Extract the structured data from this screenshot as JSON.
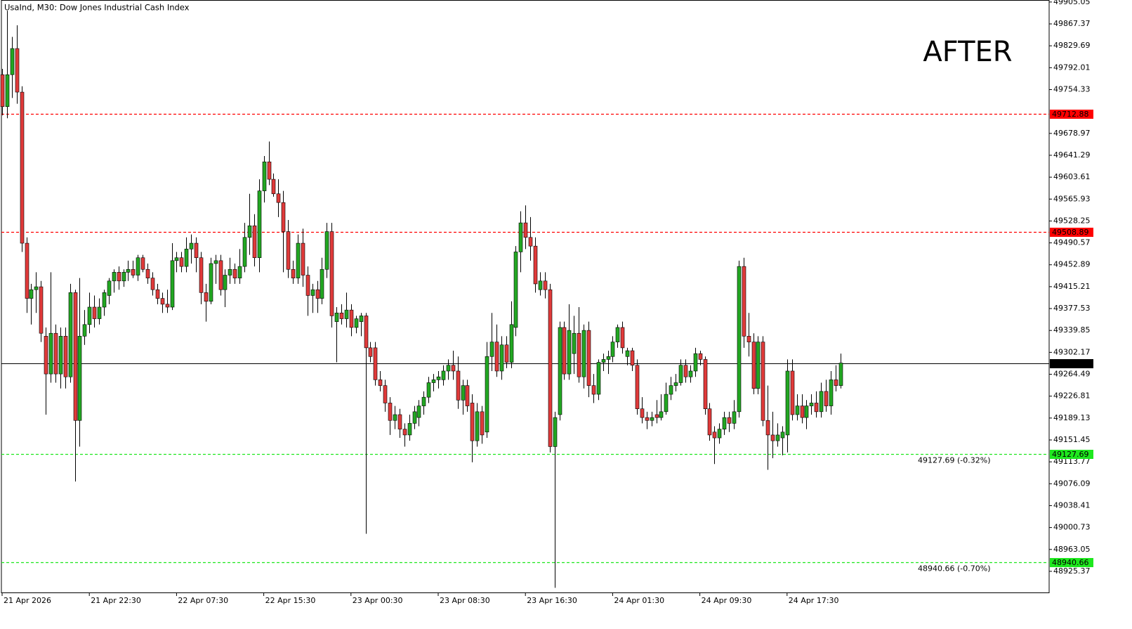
{
  "chart_data": {
    "type": "candlestick",
    "title": "UsaInd, M30:  Dow Jones Industrial Cash Index",
    "annotation": "AFTER",
    "up_color": "#22a722",
    "down_color": "#e03a3a",
    "ylim": [
      48889,
      49908.5
    ],
    "yticks": [
      49905.05,
      49867.37,
      49829.69,
      49792.01,
      49754.33,
      49678.97,
      49641.29,
      49603.61,
      49565.93,
      49528.25,
      49490.57,
      49452.89,
      49415.21,
      49377.53,
      49339.85,
      49302.17,
      49264.49,
      49226.81,
      49189.13,
      49151.45,
      49113.77,
      49076.09,
      49038.41,
      49000.73,
      48963.05,
      48925.37
    ],
    "levels": [
      {
        "value": 49712.88,
        "color": "#ff0000"
      },
      {
        "value": 49508.89,
        "color": "#ff0000"
      },
      {
        "value": 49127.69,
        "color": "#1ee81e",
        "text": "49127.69 (-0.32%)"
      },
      {
        "value": 48940.66,
        "color": "#1ee81e",
        "text": "48940.66 (-0.70%)"
      }
    ],
    "current_price": {
      "value": 49283.85,
      "color": "#000000"
    },
    "categories": [
      "21 Apr 2026",
      null,
      null,
      null,
      null,
      null,
      null,
      null,
      null,
      null,
      null,
      null,
      null,
      null,
      null,
      null,
      null,
      null,
      "21 Apr 22:30",
      null,
      null,
      null,
      null,
      null,
      null,
      null,
      null,
      null,
      null,
      null,
      null,
      null,
      null,
      null,
      null,
      null,
      "22 Apr 07:30",
      null,
      null,
      null,
      null,
      null,
      null,
      null,
      null,
      null,
      null,
      null,
      null,
      null,
      null,
      null,
      null,
      null,
      "22 Apr 15:30",
      null,
      null,
      null,
      null,
      null,
      null,
      null,
      null,
      null,
      null,
      null,
      null,
      null,
      null,
      null,
      null,
      null,
      "23 Apr 00:30",
      null,
      null,
      null,
      null,
      null,
      null,
      null,
      null,
      null,
      null,
      null,
      null,
      null,
      null,
      null,
      null,
      null,
      "23 Apr 08:30",
      null,
      null,
      null,
      null,
      null,
      null,
      null,
      null,
      null,
      null,
      null,
      null,
      null,
      null,
      null,
      null,
      null,
      "23 Apr 16:30",
      null,
      null,
      null,
      null,
      null,
      null,
      null,
      null,
      null,
      null,
      null,
      null,
      null,
      null,
      null,
      null,
      null,
      "24 Apr 01:30",
      null,
      null,
      null,
      null,
      null,
      null,
      null,
      null,
      null,
      null,
      null,
      null,
      null,
      null,
      null,
      null,
      null,
      "24 Apr 09:30",
      null,
      null,
      null,
      null,
      null,
      null,
      null,
      null,
      null,
      null,
      null,
      null,
      null,
      null,
      null,
      null,
      null,
      "24 Apr 17:30",
      null,
      null,
      null,
      null,
      null,
      null,
      null,
      null,
      null,
      null,
      null
    ],
    "open": [
      49780,
      49725,
      49780,
      49825,
      49750,
      49490,
      49395,
      49410,
      49415,
      49330,
      49265,
      49335,
      49265,
      49330,
      49260,
      49405,
      49185,
      49330,
      49350,
      49380,
      49360,
      49380,
      49400,
      49425,
      49440,
      49425,
      49440,
      49445,
      49435,
      49465,
      49445,
      49430,
      49410,
      49395,
      49385,
      49380,
      49460,
      49465,
      49450,
      49480,
      49490,
      49465,
      49405,
      49390,
      49455,
      49460,
      49410,
      49435,
      49445,
      49430,
      49450,
      49500,
      49520,
      49465,
      49580,
      49630,
      49600,
      49575,
      49560,
      49510,
      49445,
      49430,
      49490,
      49435,
      49400,
      49410,
      49395,
      49445,
      49510,
      49355,
      49370,
      49360,
      49375,
      49345,
      49355,
      49365,
      49310,
      49310,
      49255,
      49245,
      49215,
      49185,
      49195,
      49170,
      49160,
      49180,
      49190,
      49210,
      49225,
      49250,
      49255,
      49255,
      49270,
      49280,
      49270,
      49220,
      49245,
      49215,
      49150,
      49200,
      49165,
      49295,
      49320,
      49270,
      49315,
      49285,
      49345,
      49475,
      49525,
      49500,
      49485,
      49410,
      49425,
      49410,
      49140,
      49195,
      49345,
      49265,
      49300,
      49335,
      49260,
      49340,
      49245,
      49230,
      49285,
      49290,
      49295,
      49320,
      49345,
      49295,
      49305,
      49280,
      49205,
      49190,
      49185,
      49195,
      49190,
      49200,
      49230,
      49245,
      49250,
      49280,
      49260,
      49270,
      49300,
      49290,
      49205,
      49165,
      49155,
      49170,
      49190,
      49180,
      49200,
      49450,
      49330,
      49320,
      49240,
      49320,
      49185,
      49160,
      49150,
      49155,
      49160,
      49270,
      49195,
      49210,
      49190,
      49210,
      49215,
      49200,
      49235,
      49210,
      49255,
      49245
    ],
    "high": [
      49790,
      49890,
      49845,
      49865,
      49760,
      49500,
      49420,
      49440,
      49425,
      49345,
      49440,
      49350,
      49345,
      49345,
      49420,
      49410,
      49430,
      49375,
      49405,
      49400,
      49395,
      49410,
      49430,
      49445,
      49450,
      49445,
      49460,
      49460,
      49470,
      49470,
      49455,
      49440,
      49420,
      49405,
      49410,
      49490,
      49475,
      49475,
      49500,
      49505,
      49500,
      49475,
      49420,
      49465,
      49470,
      49470,
      49445,
      49465,
      49455,
      49480,
      49525,
      49575,
      49540,
      49600,
      49640,
      49665,
      49610,
      49600,
      49580,
      49530,
      49460,
      49505,
      49515,
      49450,
      49420,
      49425,
      49465,
      49525,
      49525,
      49380,
      49385,
      49405,
      49385,
      49365,
      49370,
      49370,
      49320,
      49320,
      49270,
      49255,
      49225,
      49210,
      49205,
      49180,
      49195,
      49210,
      49220,
      49235,
      49260,
      49265,
      49270,
      49280,
      49290,
      49305,
      49295,
      49255,
      49255,
      49230,
      49215,
      49210,
      49320,
      49370,
      49350,
      49330,
      49330,
      49390,
      49485,
      49545,
      49555,
      49535,
      49500,
      49440,
      49440,
      49420,
      49200,
      49355,
      49355,
      49385,
      49365,
      49380,
      49350,
      49355,
      49265,
      49290,
      49300,
      49305,
      49330,
      49350,
      49355,
      49310,
      49310,
      49290,
      49225,
      49200,
      49200,
      49220,
      49230,
      49250,
      49260,
      49265,
      49290,
      49290,
      49280,
      49310,
      49305,
      49295,
      49215,
      49175,
      49180,
      49200,
      49200,
      49220,
      49460,
      49465,
      49370,
      49335,
      49330,
      49330,
      49245,
      49200,
      49180,
      49175,
      49290,
      49290,
      49230,
      49230,
      49220,
      49230,
      49235,
      49250,
      49255,
      49270,
      49280,
      49300
    ],
    "low": [
      49710,
      49705,
      49740,
      49730,
      49475,
      49370,
      49350,
      49370,
      49320,
      49195,
      49250,
      49250,
      49240,
      49240,
      49250,
      49080,
      49140,
      49315,
      49335,
      49345,
      49350,
      49365,
      49385,
      49405,
      49410,
      49415,
      49425,
      49430,
      49425,
      49440,
      49420,
      49400,
      49385,
      49370,
      49370,
      49375,
      49440,
      49440,
      49440,
      49455,
      49440,
      49385,
      49355,
      49385,
      49420,
      49400,
      49380,
      49420,
      49420,
      49420,
      49440,
      49470,
      49450,
      49440,
      49560,
      49590,
      49570,
      49535,
      49440,
      49430,
      49420,
      49420,
      49415,
      49365,
      49370,
      49370,
      49385,
      49430,
      49345,
      49285,
      49350,
      49345,
      49330,
      49335,
      49330,
      48990,
      49285,
      49245,
      49235,
      49200,
      49160,
      49170,
      49155,
      49140,
      49150,
      49170,
      49175,
      49195,
      49215,
      49235,
      49240,
      49245,
      49255,
      49255,
      49205,
      49195,
      49200,
      49113,
      49140,
      49145,
      49155,
      49270,
      49260,
      49255,
      49275,
      49275,
      49330,
      49440,
      49480,
      49460,
      49405,
      49400,
      49395,
      49130,
      48897,
      49185,
      49255,
      49255,
      49265,
      49250,
      49240,
      49225,
      49215,
      49220,
      49270,
      49265,
      49285,
      49310,
      49300,
      49280,
      49270,
      49195,
      49180,
      49170,
      49175,
      49180,
      49185,
      49195,
      49220,
      49235,
      49245,
      49250,
      49250,
      49260,
      49280,
      49195,
      49150,
      49110,
      49145,
      49160,
      49165,
      49170,
      49190,
      49310,
      49295,
      49230,
      49230,
      49175,
      49100,
      49120,
      49140,
      49125,
      49130,
      49185,
      49185,
      49180,
      49170,
      49195,
      49190,
      49190,
      49200,
      49195,
      49235,
      49240
    ],
    "close": [
      49725,
      49780,
      49825,
      49750,
      49490,
      49395,
      49410,
      49415,
      49335,
      49265,
      49335,
      49265,
      49330,
      49260,
      49405,
      49185,
      49330,
      49350,
      49380,
      49360,
      49380,
      49405,
      49425,
      49440,
      49425,
      49440,
      49445,
      49435,
      49465,
      49445,
      49430,
      49410,
      49395,
      49385,
      49380,
      49460,
      49465,
      49450,
      49480,
      49490,
      49465,
      49405,
      49390,
      49455,
      49460,
      49410,
      49435,
      49445,
      49430,
      49450,
      49500,
      49520,
      49465,
      49580,
      49630,
      49600,
      49575,
      49560,
      49510,
      49445,
      49430,
      49490,
      49435,
      49400,
      49410,
      49395,
      49445,
      49510,
      49365,
      49370,
      49360,
      49375,
      49345,
      49360,
      49365,
      49310,
      49295,
      49255,
      49245,
      49215,
      49185,
      49195,
      49170,
      49160,
      49180,
      49200,
      49210,
      49225,
      49250,
      49255,
      49260,
      49270,
      49280,
      49270,
      49220,
      49245,
      49210,
      49150,
      49200,
      49160,
      49295,
      49320,
      49270,
      49315,
      49285,
      49350,
      49475,
      49525,
      49500,
      49485,
      49420,
      49425,
      49410,
      49140,
      49190,
      49345,
      49265,
      49340,
      49335,
      49260,
      49340,
      49245,
      49230,
      49285,
      49290,
      49295,
      49320,
      49345,
      49310,
      49305,
      49280,
      49205,
      49190,
      49185,
      49190,
      49190,
      49200,
      49230,
      49245,
      49250,
      49280,
      49260,
      49270,
      49300,
      49290,
      49205,
      49160,
      49155,
      49170,
      49190,
      49180,
      49200,
      49450,
      49330,
      49320,
      49240,
      49320,
      49185,
      49160,
      49150,
      49160,
      49165,
      49270,
      49195,
      49210,
      49190,
      49210,
      49215,
      49200,
      49235,
      49210,
      49255,
      49245,
      49283.85
    ]
  }
}
